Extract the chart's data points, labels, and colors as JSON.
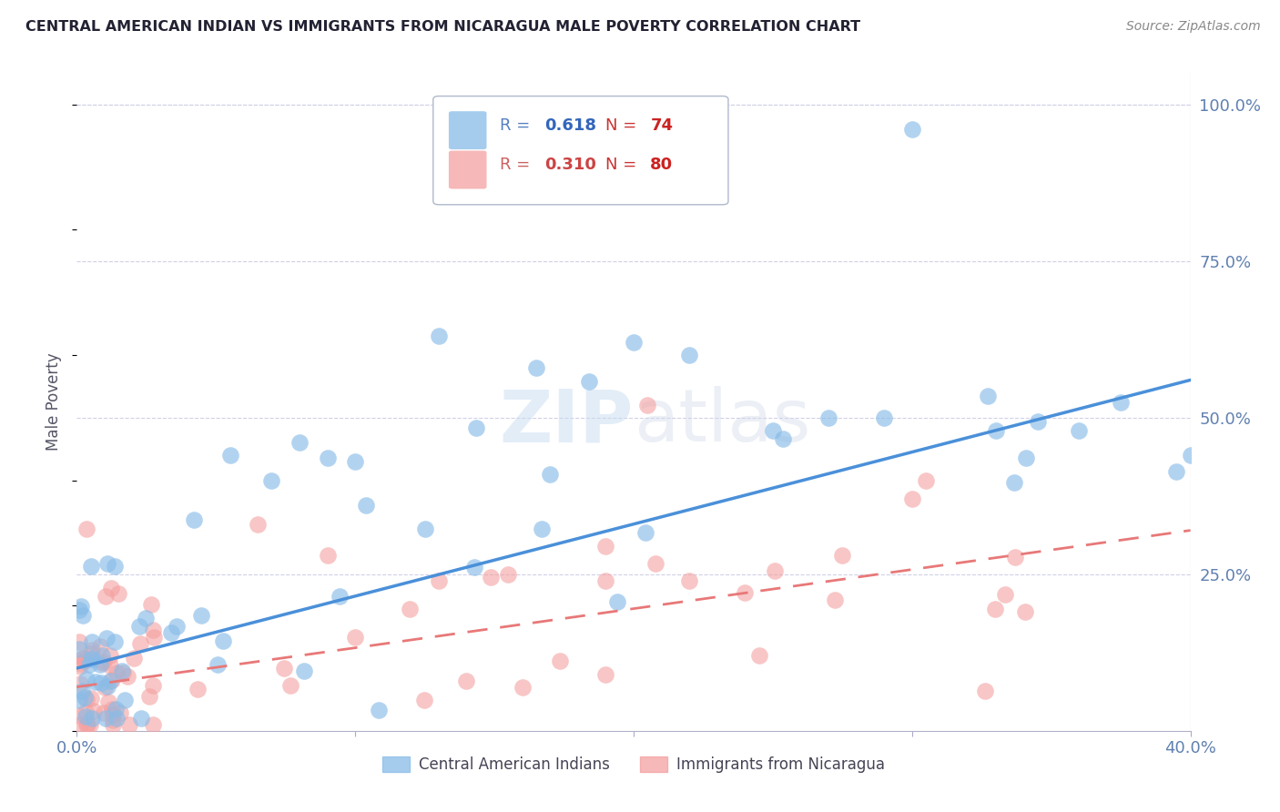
{
  "title": "CENTRAL AMERICAN INDIAN VS IMMIGRANTS FROM NICARAGUA MALE POVERTY CORRELATION CHART",
  "source": "Source: ZipAtlas.com",
  "ylabel": "Male Poverty",
  "xlim": [
    0.0,
    0.4
  ],
  "ylim": [
    0.0,
    1.05
  ],
  "xtick_positions": [
    0.0,
    0.1,
    0.2,
    0.3,
    0.4
  ],
  "xtick_labels": [
    "0.0%",
    "",
    "",
    "",
    "40.0%"
  ],
  "ytick_labels": [
    "100.0%",
    "75.0%",
    "50.0%",
    "25.0%"
  ],
  "ytick_values": [
    1.0,
    0.75,
    0.5,
    0.25
  ],
  "R_blue": 0.618,
  "N_blue": 74,
  "R_pink": 0.31,
  "N_pink": 80,
  "blue_color": "#89bce8",
  "pink_color": "#f4a0a0",
  "blue_line_color": "#4a90d9",
  "pink_line_color": "#e87878",
  "watermark": "ZIPatlas",
  "legend_label_blue": "Central American Indians",
  "legend_label_pink": "Immigrants from Nicaragua",
  "blue_line_x0": 0.0,
  "blue_line_y0": 0.1,
  "blue_line_x1": 0.4,
  "blue_line_y1": 0.56,
  "pink_line_x0": 0.0,
  "pink_line_y0": 0.07,
  "pink_line_x1": 0.4,
  "pink_line_y1": 0.32
}
